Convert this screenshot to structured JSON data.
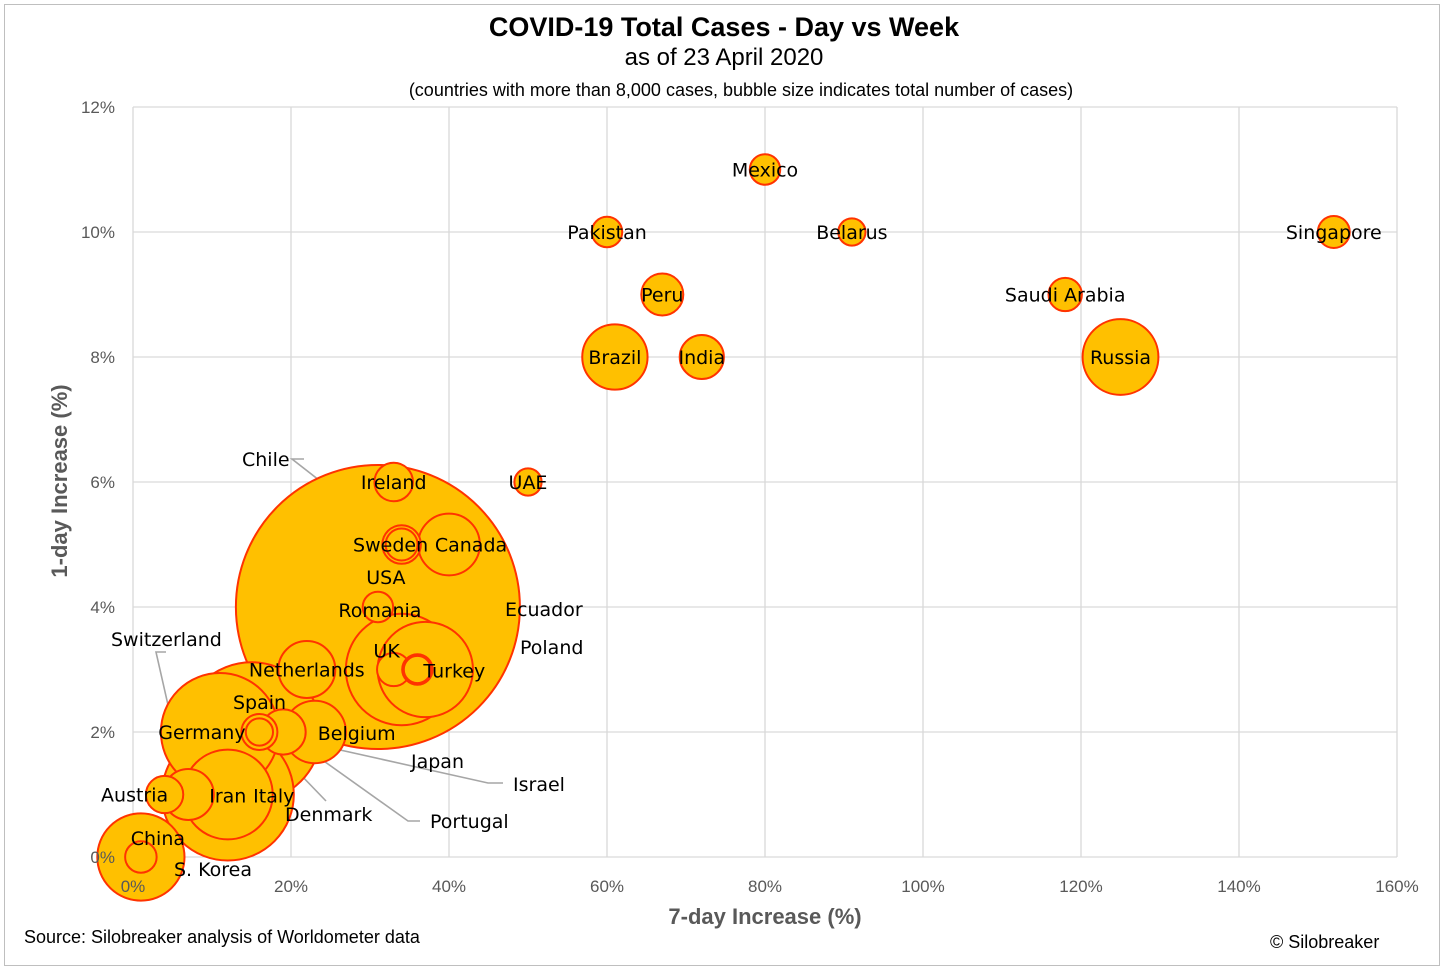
{
  "chart_data": {
    "type": "bubble",
    "title": "COVID-19 Total Cases - Day vs Week",
    "subtitle": "as of 23 April 2020",
    "note": "(countries with more than 8,000 cases, bubble size indicates total number of cases)",
    "xlabel": "7-day Increase (%)",
    "ylabel": "1-day Increase (%)",
    "xlim": [
      0,
      160
    ],
    "ylim": [
      0,
      12
    ],
    "x_ticks": [
      "0%",
      "20%",
      "40%",
      "60%",
      "80%",
      "100%",
      "120%",
      "140%",
      "160%"
    ],
    "y_ticks": [
      "0%",
      "2%",
      "4%",
      "6%",
      "8%",
      "10%",
      "12%"
    ],
    "grid": true,
    "bubble_fill": "#ffc000",
    "bubble_stroke": "#ff3300",
    "leader_color": "#a6a6a6",
    "points": [
      {
        "name": "USA",
        "x": 31,
        "y": 4,
        "cases": 870000
      },
      {
        "name": "Spain",
        "x": 15,
        "y": 2,
        "cases": 210000
      },
      {
        "name": "Italy",
        "x": 12,
        "y": 1,
        "cases": 188000
      },
      {
        "name": "Germany",
        "x": 11,
        "y": 2,
        "cases": 150000
      },
      {
        "name": "UK",
        "x": 34,
        "y": 3,
        "cases": 134000
      },
      {
        "name": "Turkey",
        "x": 37,
        "y": 3,
        "cases": 98000
      },
      {
        "name": "Iran",
        "x": 12,
        "y": 1,
        "cases": 87000
      },
      {
        "name": "Russia",
        "x": 125,
        "y": 8,
        "cases": 62000
      },
      {
        "name": "Belgium",
        "x": 23,
        "y": 2,
        "cases": 42000
      },
      {
        "name": "Brazil",
        "x": 61,
        "y": 8,
        "cases": 46000
      },
      {
        "name": "Canada",
        "x": 40,
        "y": 5,
        "cases": 41000
      },
      {
        "name": "Netherlands",
        "x": 22,
        "y": 3,
        "cases": 35000
      },
      {
        "name": "Switzerland",
        "x": 7,
        "y": 1,
        "cases": 28000
      },
      {
        "name": "Portugal",
        "x": 19,
        "y": 2,
        "cases": 22000
      },
      {
        "name": "India",
        "x": 72,
        "y": 8,
        "cases": 21000
      },
      {
        "name": "Peru",
        "x": 67,
        "y": 9,
        "cases": 19000
      },
      {
        "name": "Ireland",
        "x": 33,
        "y": 6,
        "cases": 16000
      },
      {
        "name": "Sweden",
        "x": 34,
        "y": 5,
        "cases": 16000
      },
      {
        "name": "Austria",
        "x": 4,
        "y": 1,
        "cases": 15000
      },
      {
        "name": "Israel",
        "x": 16,
        "y": 2,
        "cases": 14000
      },
      {
        "name": "Saudi Arabia",
        "x": 118,
        "y": 9,
        "cases": 12000
      },
      {
        "name": "Japan",
        "x": 33,
        "y": 3,
        "cases": 12000
      },
      {
        "name": "Chile",
        "x": 34,
        "y": 5,
        "cases": 11000
      },
      {
        "name": "Singapore",
        "x": 152,
        "y": 10,
        "cases": 11000
      },
      {
        "name": "Poland",
        "x": 36,
        "y": 3,
        "cases": 10000
      },
      {
        "name": "Mexico",
        "x": 80,
        "y": 11,
        "cases": 10000
      },
      {
        "name": "Pakistan",
        "x": 60,
        "y": 10,
        "cases": 10000
      },
      {
        "name": "Romania",
        "x": 31,
        "y": 4,
        "cases": 10000
      },
      {
        "name": "UAE",
        "x": 50,
        "y": 6,
        "cases": 8000
      },
      {
        "name": "Belarus",
        "x": 91,
        "y": 10,
        "cases": 8000
      },
      {
        "name": "Denmark",
        "x": 16,
        "y": 2,
        "cases": 8000
      },
      {
        "name": "Ecuador",
        "x": 36,
        "y": 3,
        "cases": 8000
      },
      {
        "name": "China",
        "x": 1,
        "y": 0,
        "cases": 82000
      },
      {
        "name": "S. Korea",
        "x": 1,
        "y": 0,
        "cases": 10700
      }
    ]
  },
  "footer": {
    "source": "Source: Silobreaker analysis of Worldometer data",
    "copyright": "© Silobreaker"
  }
}
